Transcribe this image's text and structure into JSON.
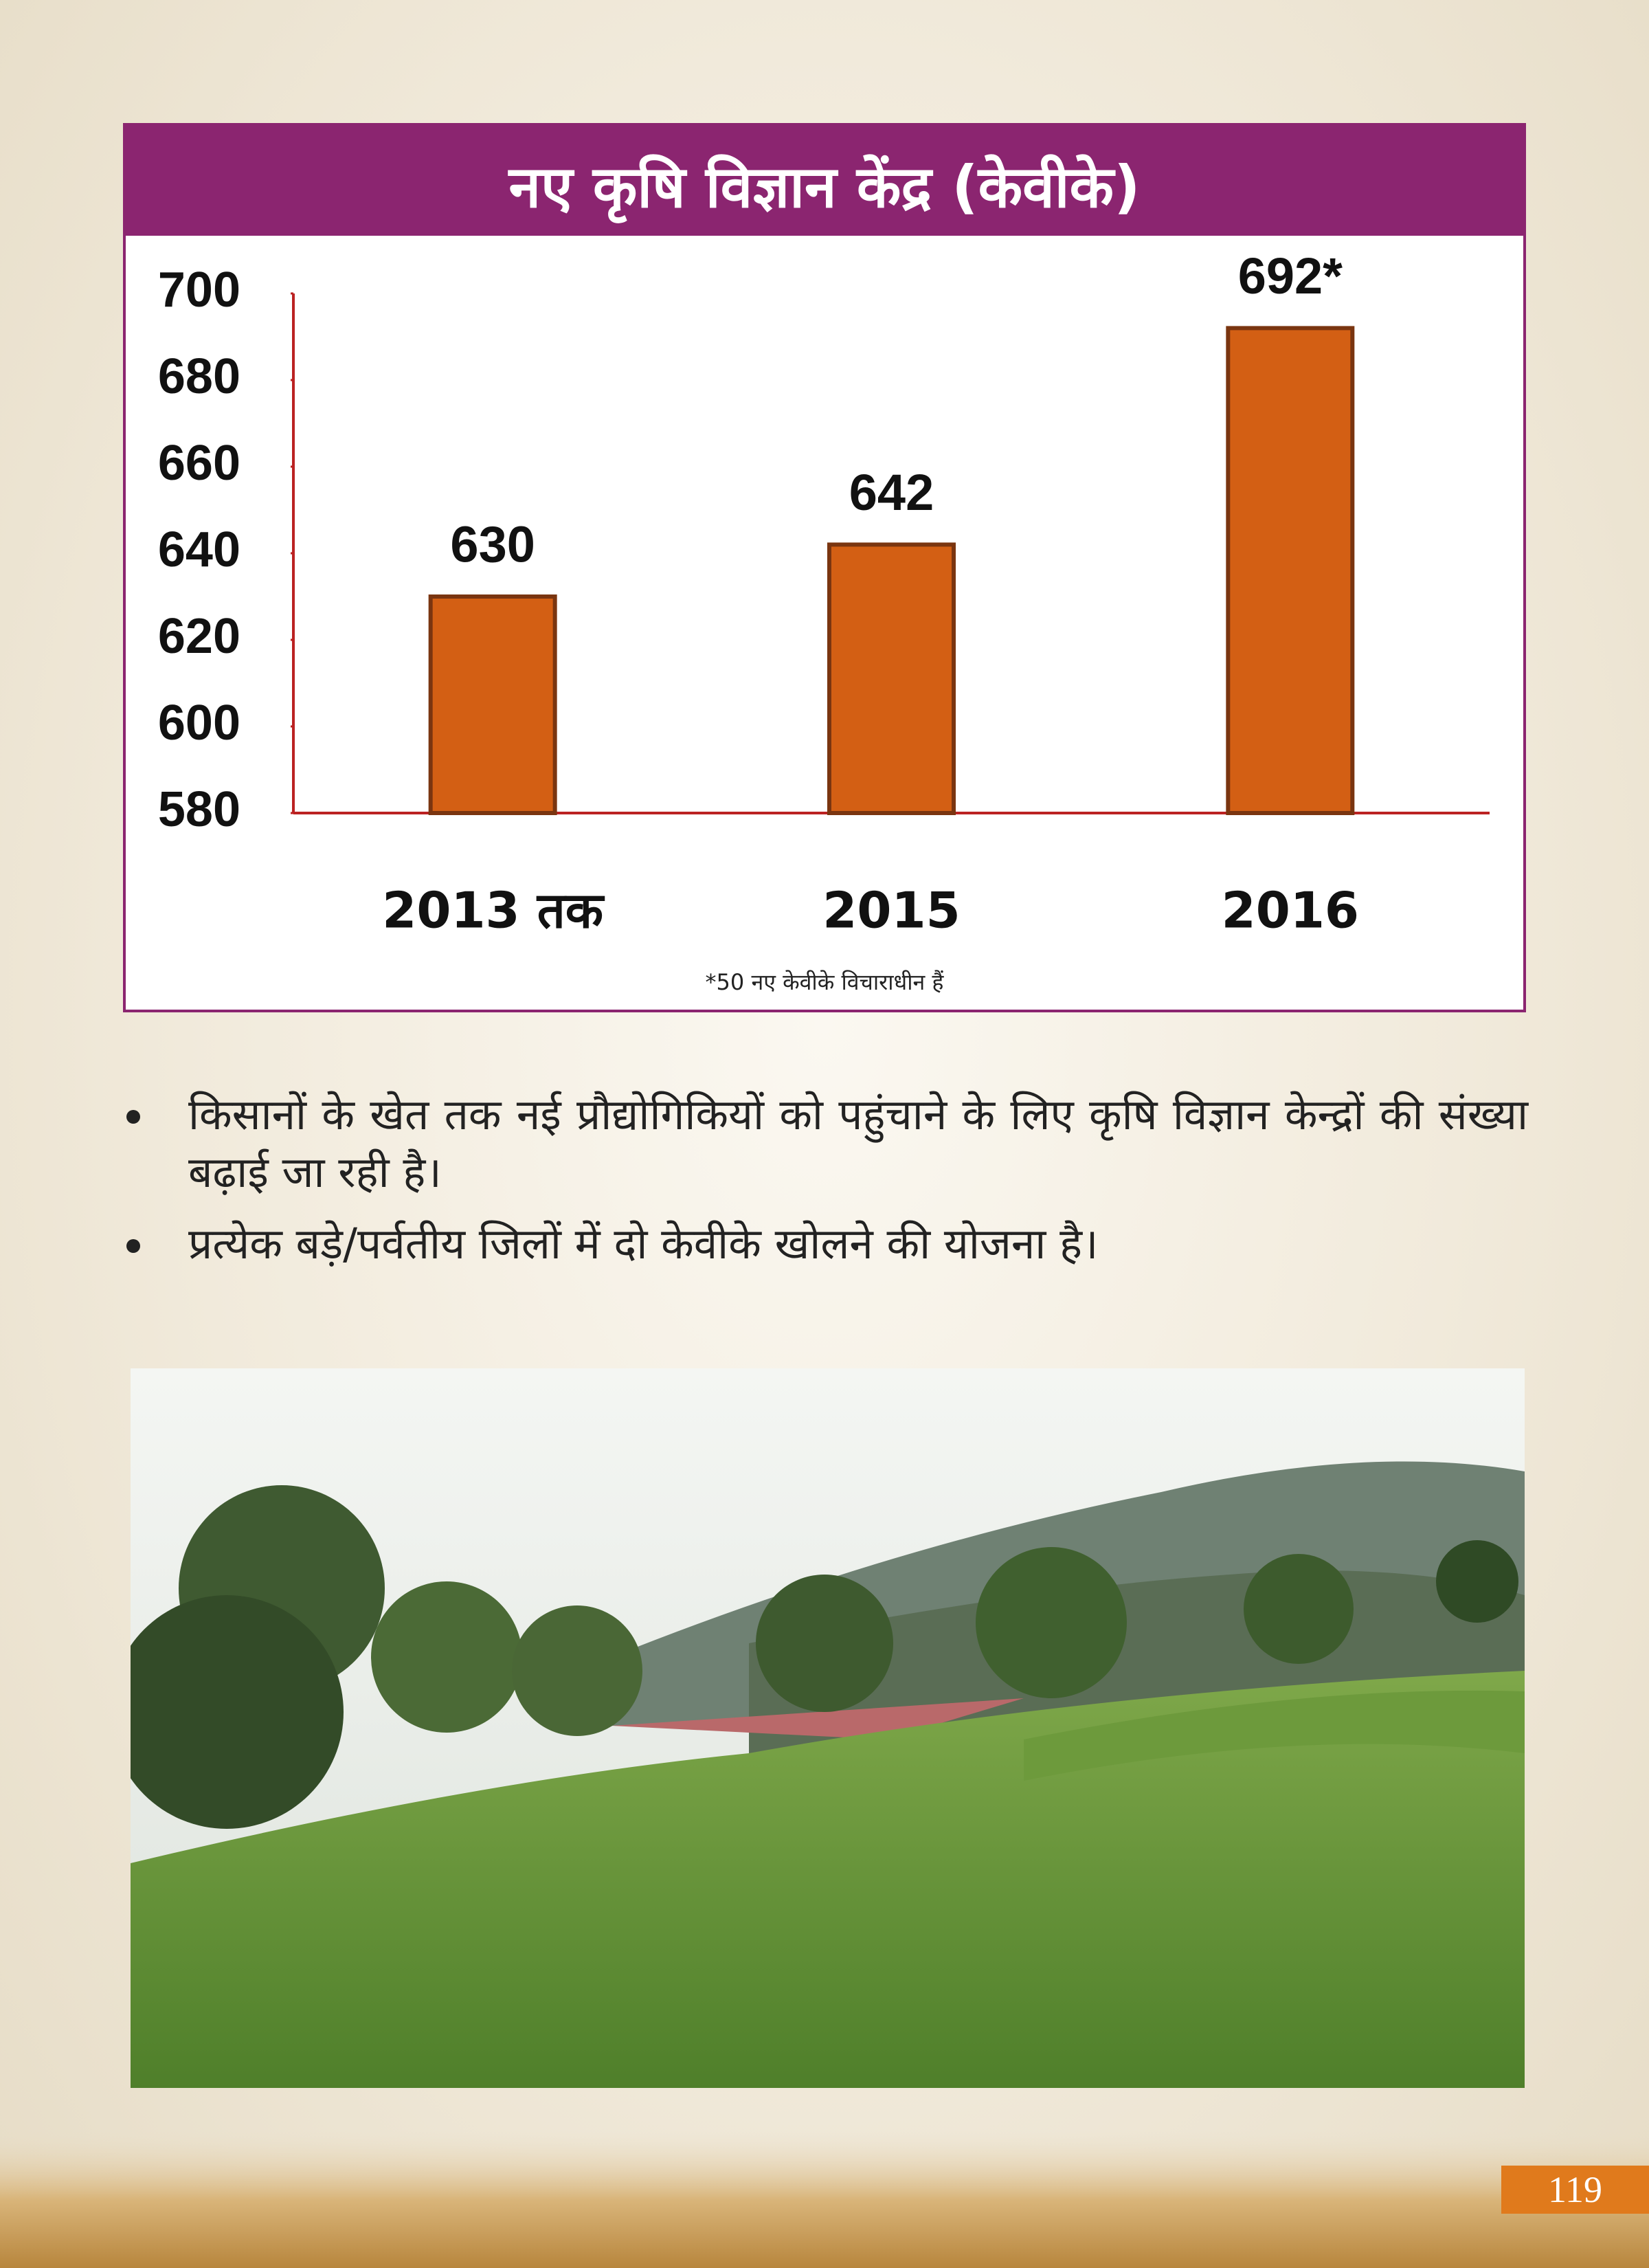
{
  "chart_data": {
    "type": "bar",
    "title": "नए कृषि विज्ञान केंद्र (केवीके)",
    "categories": [
      "2013 तक",
      "2015",
      "2016"
    ],
    "values": [
      630,
      642,
      692
    ],
    "value_labels": [
      "630",
      "642",
      "692*"
    ],
    "color": "#d35f14",
    "ylim": [
      580,
      700
    ],
    "yticks": [
      580,
      600,
      620,
      640,
      660,
      680,
      700
    ],
    "note": "*50 नए केवीके विचाराधीन हैं"
  },
  "bullets": [
    "किसानों के खेत तक नई प्रौद्योगिकियों को पहुंचाने के लिए कृषि विज्ञान केन्द्रों की संख्या बढ़ाई जा रही है।",
    "प्रत्येक बड़े/पर्वतीय जिलों में दो केवीके खोलने की योजना है।"
  ],
  "page_number": "119"
}
